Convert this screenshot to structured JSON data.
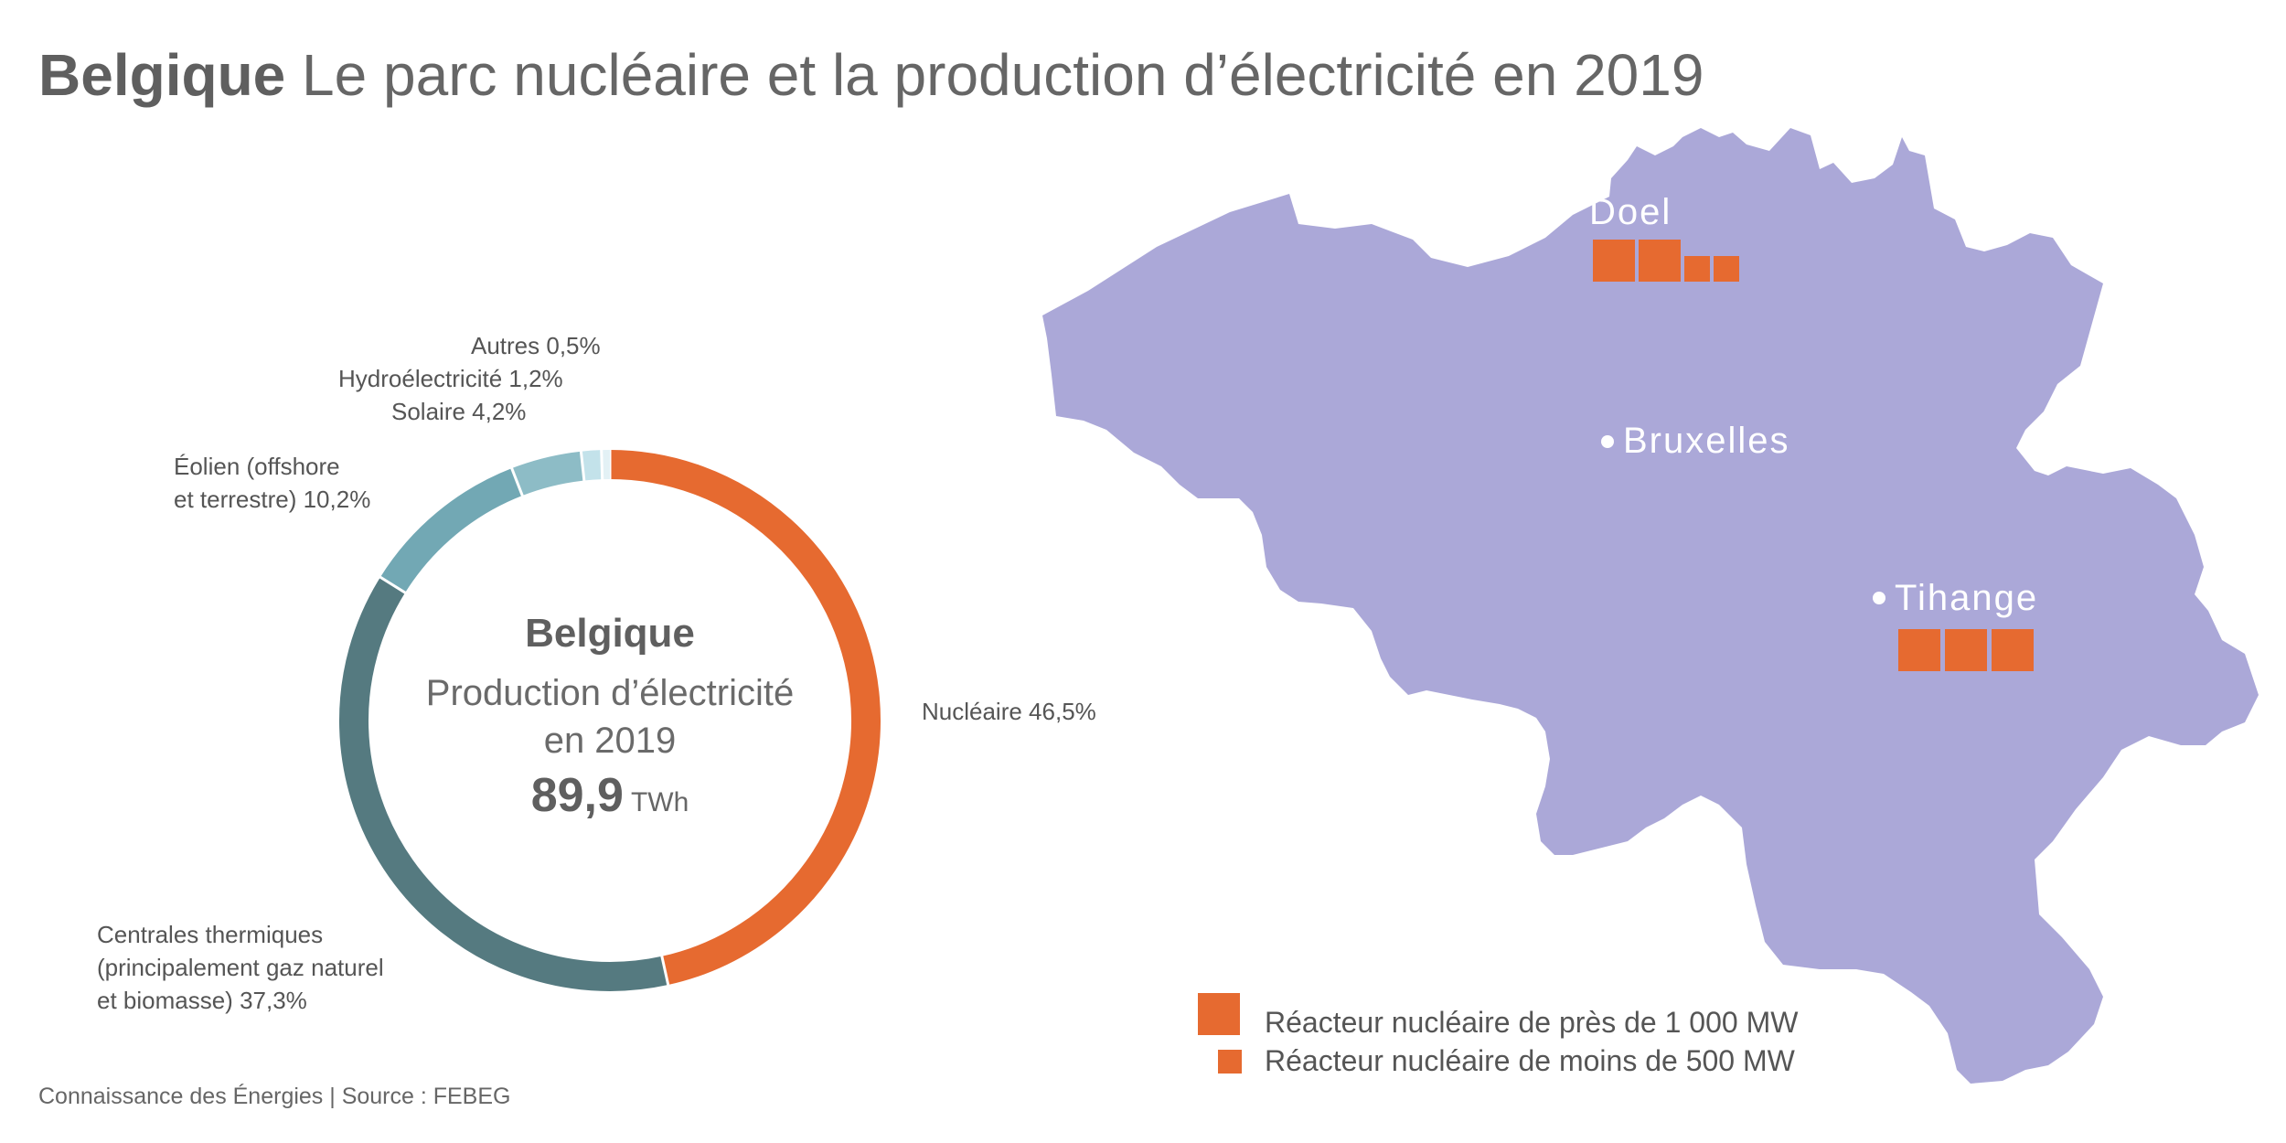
{
  "header": {
    "title_bold": "Belgique",
    "title_rest": "Le parc nucléaire et la production d’électricité en 2019"
  },
  "chart_data": {
    "type": "pie",
    "donut": true,
    "title": "Production d’électricité en 2019",
    "center": {
      "title": "Belgique",
      "subtitle": "Production d’électricité\nen 2019",
      "total_value": "89,9",
      "total_unit": "TWh"
    },
    "slices": [
      {
        "name": "Nucléaire",
        "value": 46.5,
        "label": "Nucléaire 46,5%",
        "color": "#e66a30"
      },
      {
        "name": "Centrales thermiques (principalement gaz naturel et biomasse)",
        "value": 37.3,
        "label": "Centrales thermiques\n(principalement gaz naturel\net biomasse) 37,3%",
        "color": "#557a80"
      },
      {
        "name": "Éolien (offshore et terrestre)",
        "value": 10.2,
        "label": "Éolien (offshore\net terrestre) 10,2%",
        "color": "#72a8b4"
      },
      {
        "name": "Solaire",
        "value": 4.2,
        "label": "Solaire 4,2%",
        "color": "#8dbcc6"
      },
      {
        "name": "Hydroélectricité",
        "value": 1.2,
        "label": "Hydroélectricité 1,2%",
        "color": "#c3e2ea"
      },
      {
        "name": "Autres",
        "value": 0.5,
        "label": "Autres 0,5%",
        "color": "#e3f1f5"
      }
    ]
  },
  "map": {
    "country_color": "#aba8d8",
    "reactor_color": "#e66a30",
    "sites": [
      {
        "name": "Doel",
        "reactors": [
          "large",
          "large",
          "small",
          "small"
        ]
      },
      {
        "name": "Bruxelles",
        "reactors": []
      },
      {
        "name": "Tihange",
        "reactors": [
          "large",
          "large",
          "large"
        ]
      }
    ]
  },
  "legend": {
    "large": "Réacteur nucléaire de près de 1 000 MW",
    "small": "Réacteur nucléaire de moins de 500 MW"
  },
  "footer": {
    "source": "Connaissance des Énergies | Source : FEBEG"
  }
}
